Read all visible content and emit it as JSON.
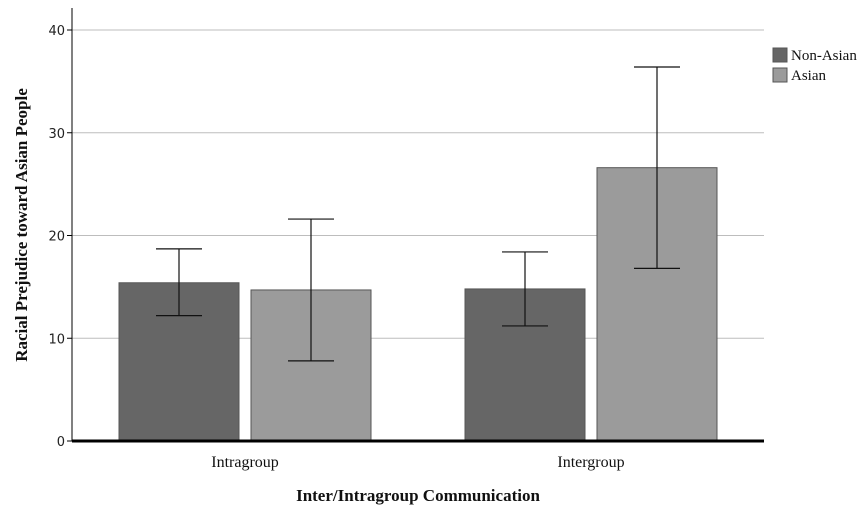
{
  "chart_data": {
    "type": "bar",
    "xlabel": "Inter/Intragroup Communication",
    "ylabel": "Racial Prejudice toward Asian People",
    "categories": [
      "Intragroup",
      "Intergroup"
    ],
    "ylim": [
      0,
      40
    ],
    "yticks": [
      0,
      10,
      20,
      30,
      40
    ],
    "grid": true,
    "legend_position": "top-right",
    "series": [
      {
        "name": "Non-Asian",
        "color": "#666666",
        "values": [
          15.4,
          14.8
        ],
        "error_low": [
          12.2,
          11.2
        ],
        "error_high": [
          18.7,
          18.4
        ]
      },
      {
        "name": "Asian",
        "color": "#9b9b9b",
        "values": [
          14.7,
          26.6
        ],
        "error_low": [
          7.8,
          16.8
        ],
        "error_high": [
          21.6,
          36.4
        ]
      }
    ]
  }
}
